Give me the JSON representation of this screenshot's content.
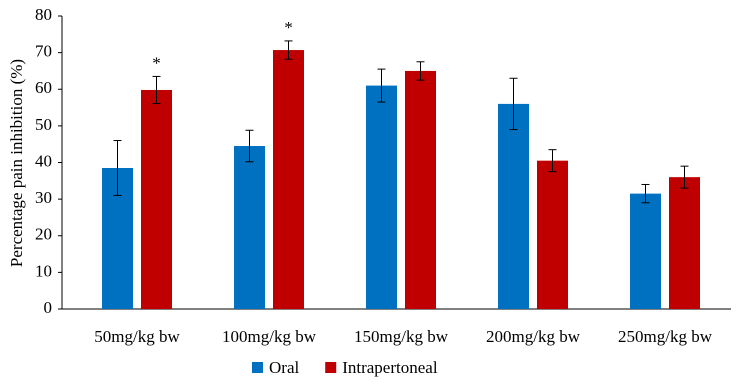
{
  "chart_data": {
    "type": "bar",
    "y_label": "Percentage pain inhibition (%)",
    "categories": [
      "50mg/kg bw",
      "100mg/kg bw",
      "150mg/kg bw",
      "200mg/kg bw",
      "250mg/kg bw"
    ],
    "series": [
      {
        "name": "Oral",
        "color": "#0070c0",
        "values": [
          38.5,
          44.5,
          61,
          56,
          31.5
        ],
        "errors": [
          7.5,
          4.3,
          4.5,
          7,
          2.5
        ]
      },
      {
        "name": "Intrapertoneal",
        "color": "#c00000",
        "values": [
          59.8,
          70.7,
          65,
          40.5,
          36
        ],
        "errors": [
          3.7,
          2.5,
          2.5,
          3,
          3
        ],
        "markers": [
          "*",
          "*",
          null,
          null,
          null
        ]
      }
    ],
    "ylim": [
      0,
      80
    ],
    "yticks": [
      0,
      10,
      20,
      30,
      40,
      50,
      60,
      70,
      80
    ],
    "grid": false
  }
}
